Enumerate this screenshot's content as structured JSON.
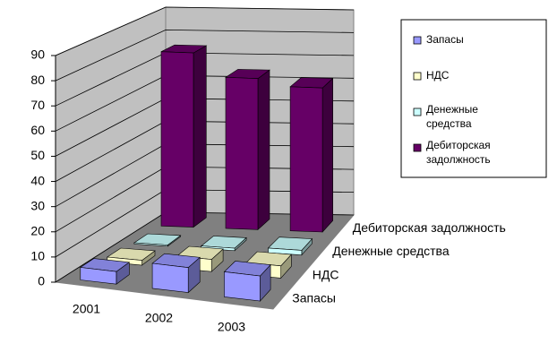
{
  "chart_data": {
    "type": "bar3d",
    "categories": [
      "2001",
      "2002",
      "2003"
    ],
    "series": [
      {
        "name": "Запасы",
        "color": "#9999ff",
        "values": [
          5,
          10,
          10
        ]
      },
      {
        "name": "НДС",
        "color": "#ffffcc",
        "values": [
          2,
          5,
          5
        ]
      },
      {
        "name": "Денежные средства",
        "color": "#ccffff",
        "values": [
          0.5,
          1,
          2
        ]
      },
      {
        "name": "Дебиторская задолжность",
        "color": "#660066",
        "values": [
          75,
          65,
          62
        ]
      }
    ],
    "ylim": [
      0,
      90
    ],
    "yticks": [
      0,
      10,
      20,
      30,
      40,
      50,
      60,
      70,
      80,
      90
    ],
    "grid": true
  }
}
